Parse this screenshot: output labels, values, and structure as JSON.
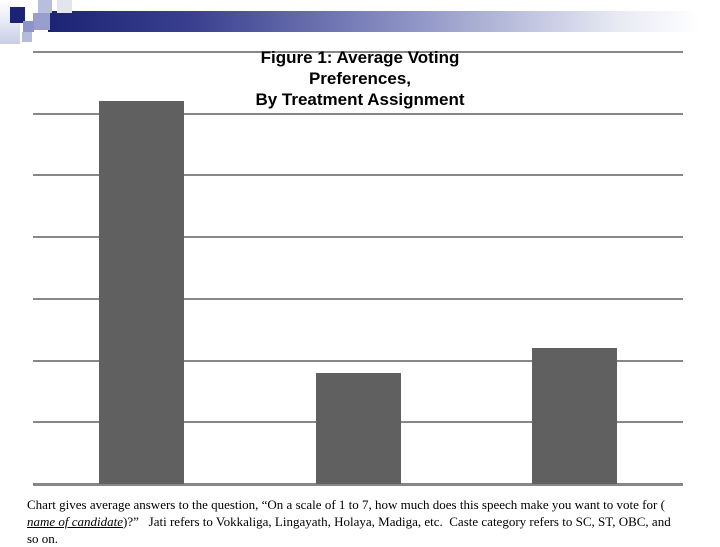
{
  "slide": {
    "background": "#ffffff"
  },
  "decoration": {
    "colors": {
      "navy": "#1d2374",
      "slate": "#9096c6",
      "lavender_light": "#c9cde6"
    }
  },
  "chart_data": {
    "type": "bar",
    "title": "Figure 1: Average Voting Preferences, By Treatment Assignment",
    "title_lines": [
      "Figure 1: Average Voting",
      "Preferences,",
      "By Treatment Assignment"
    ],
    "categories": [
      "",
      "",
      ""
    ],
    "values": [
      6.2,
      1.8,
      2.2
    ],
    "xlabel": "",
    "ylabel": "",
    "ylim": [
      0,
      7
    ],
    "gridline_step": 1,
    "grid": true,
    "legend": false,
    "axis_tick_labels_visible": false,
    "bar_color": "#606060",
    "gridline_color": "#878787"
  },
  "caption": {
    "part1": "Chart gives average answers to the question, “On a scale of 1 to 7, how much does this speech make you want to vote for ( ",
    "emphasis": "name of candidate",
    "part2": ")?”   Jati refers to Vokkaliga, Lingayath, Holaya, Madiga, etc.  Caste category refers to SC, ST, OBC, and so on."
  }
}
